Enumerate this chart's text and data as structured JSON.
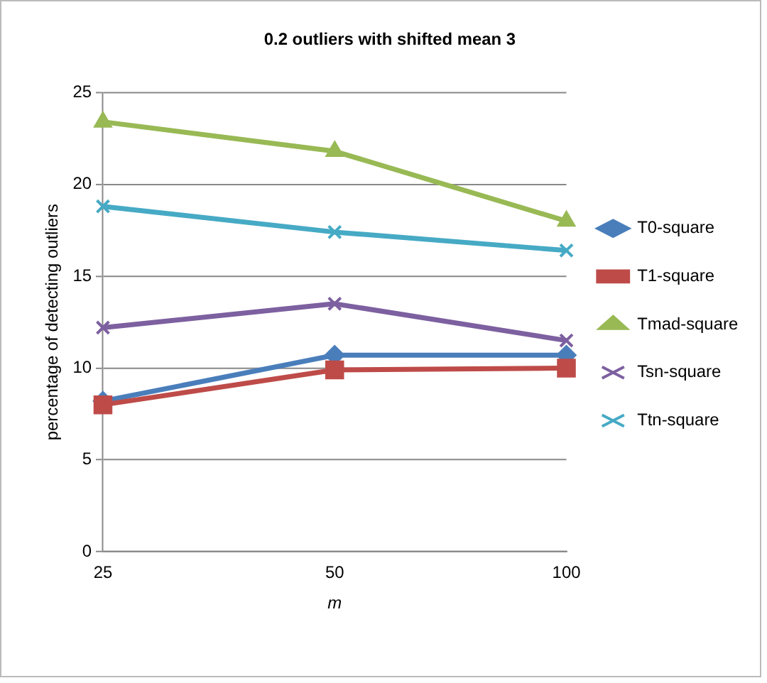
{
  "chart_data": {
    "type": "line",
    "title": "0.2 outliers with shifted mean 3",
    "xlabel": "m",
    "ylabel": "percentage of detecting outliers",
    "categories": [
      "25",
      "50",
      "100"
    ],
    "ylim": [
      0,
      25
    ],
    "yticks": [
      0,
      5,
      10,
      15,
      20,
      25
    ],
    "grid": "y",
    "legend": "right",
    "line_style": "solid",
    "series": [
      {
        "name": "T0-square",
        "color": "#4a7ebb",
        "marker": "diamond",
        "values": [
          8.2,
          10.7,
          10.7
        ]
      },
      {
        "name": "T1-square",
        "color": "#be4b48",
        "marker": "square",
        "values": [
          8.0,
          9.9,
          10.0
        ]
      },
      {
        "name": "Tmad-square",
        "color": "#98b954",
        "marker": "triangle",
        "values": [
          23.4,
          21.8,
          18.0
        ]
      },
      {
        "name": "Tsn-square",
        "color": "#7d60a0",
        "marker": "cross",
        "values": [
          12.2,
          13.5,
          11.5
        ]
      },
      {
        "name": "Ttn-square",
        "color": "#46aac5",
        "marker": "cross",
        "values": [
          18.8,
          17.4,
          16.4
        ]
      }
    ]
  }
}
